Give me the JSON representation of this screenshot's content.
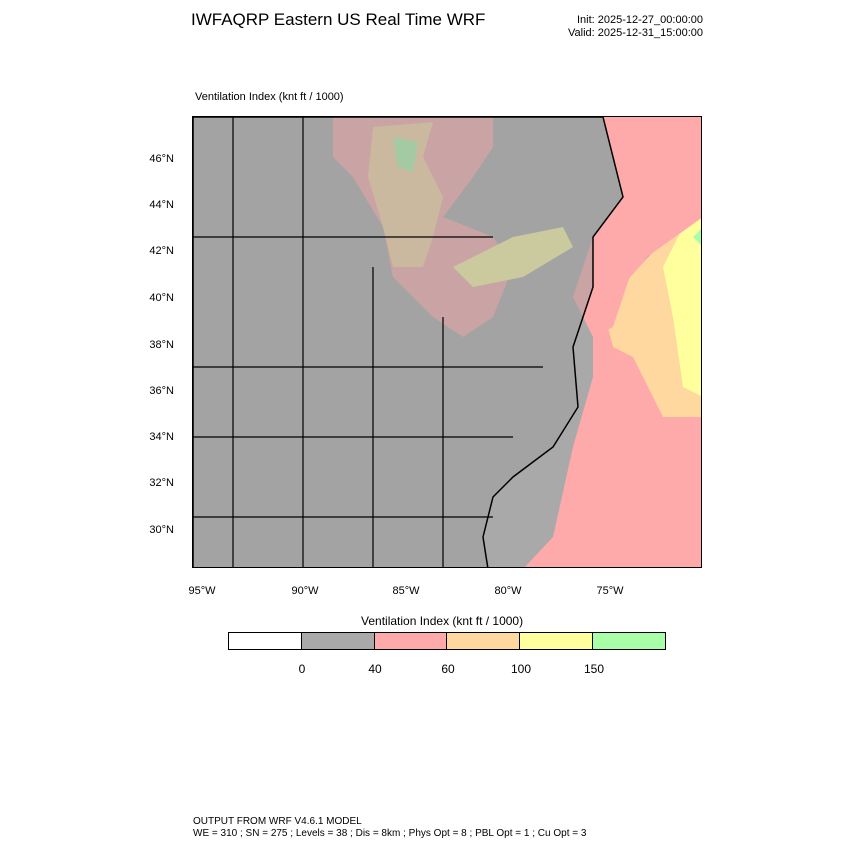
{
  "header": {
    "title": "IWFAQRP Eastern US Real Time WRF",
    "init": "Init: 2025-12-27_00:00:00",
    "valid": "Valid: 2025-12-31_15:00:00"
  },
  "map": {
    "label": "Ventilation Index   (knt ft / 1000)",
    "lat_labels": [
      "46°N",
      "44°N",
      "42°N",
      "40°N",
      "38°N",
      "36°N",
      "34°N",
      "32°N",
      "30°N"
    ],
    "lon_labels": [
      "95°W",
      "90°W",
      "85°W",
      "80°W",
      "75°W"
    ]
  },
  "colorbar": {
    "title": "Ventilation Index  (knt ft / 1000)",
    "colors": [
      "#ffffff",
      "#a9a9a9",
      "#ffaaaa",
      "#ffd8a0",
      "#ffff9e",
      "#a8ffa8"
    ],
    "labels": [
      "0",
      "40",
      "60",
      "100",
      "150"
    ]
  },
  "footer": {
    "line1": "OUTPUT FROM WRF V4.6.1 MODEL",
    "line2": "WE = 310 ; SN = 275 ; Levels = 38 ; Dis = 8km ; Phys Opt = 8 ; PBL Opt = 1 ; Cu Opt = 3"
  }
}
